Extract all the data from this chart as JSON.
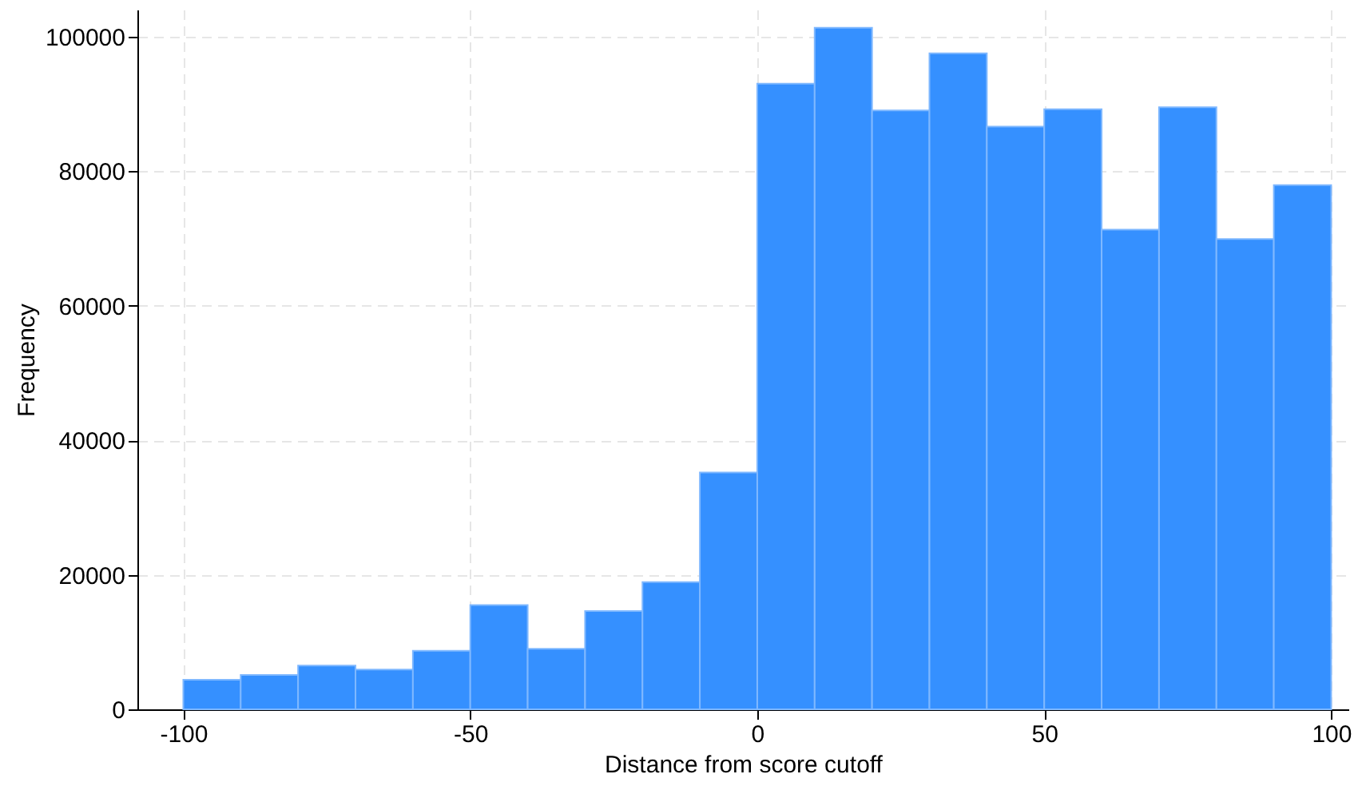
{
  "chart_data": {
    "type": "histogram",
    "xlabel": "Distance from score cutoff",
    "ylabel": "Frequency",
    "bins": [
      -100,
      -90,
      -80,
      -70,
      -60,
      -50,
      -40,
      -30,
      -20,
      -10,
      0,
      10,
      20,
      30,
      40,
      50,
      60,
      70,
      80,
      90,
      100
    ],
    "values": [
      4400,
      5100,
      6500,
      5900,
      8700,
      15500,
      9000,
      14600,
      18900,
      35200,
      93000,
      101300,
      89000,
      97500,
      86600,
      89200,
      71300,
      89500,
      69900,
      77900
    ],
    "color": "#3590ff",
    "xlim": [
      -108,
      103
    ],
    "xticks": [
      -100,
      -50,
      0,
      50,
      100
    ],
    "ylim": [
      0,
      104000
    ],
    "yticks": [
      0,
      20000,
      40000,
      60000,
      80000,
      100000
    ],
    "grid": true
  }
}
